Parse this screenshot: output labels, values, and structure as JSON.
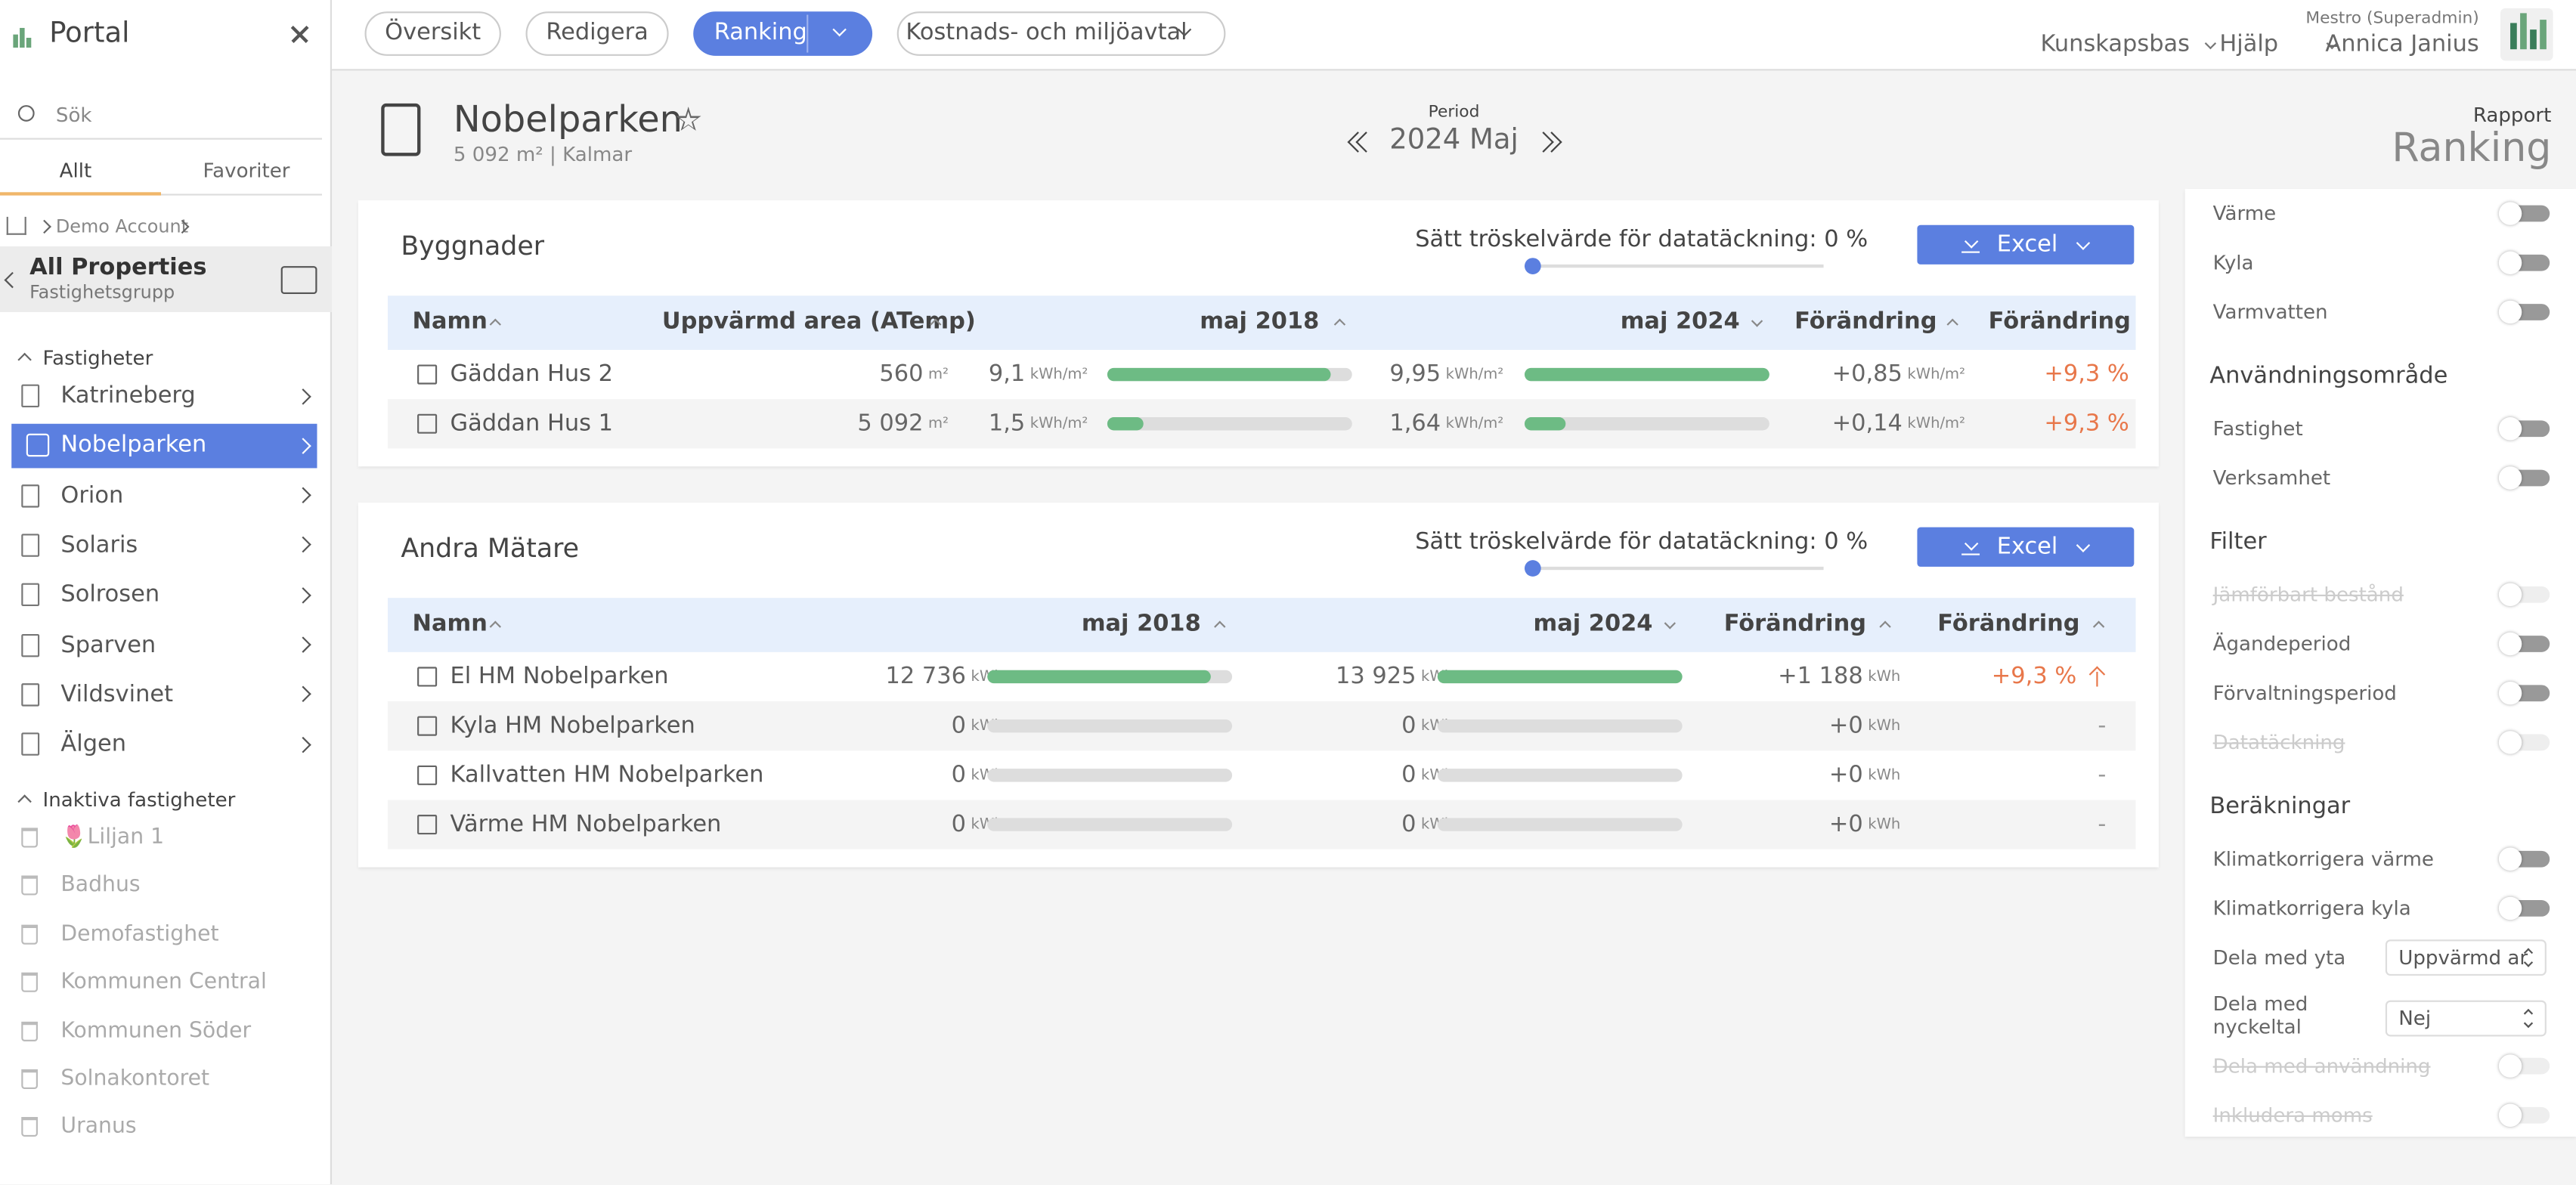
{
  "sidebar": {
    "title": "Portal",
    "search_placeholder": "Sök",
    "tabs": [
      "Allt",
      "Favoriter"
    ],
    "breadcrumb": "Demo Account",
    "group_name": "All Properties",
    "group_type": "Fastighetsgrupp",
    "properties_heading": "Fastigheter",
    "properties": [
      "Katrineberg",
      "Nobelparken",
      "Orion",
      "Solaris",
      "Solrosen",
      "Sparven",
      "Vildsvinet",
      "Älgen"
    ],
    "inactive_heading": "Inaktiva fastigheter",
    "inactive_properties": [
      "🌷Liljan 1",
      "Badhus",
      "Demofastighet",
      "Kommunen Central",
      "Kommunen Söder",
      "Solnakontoret",
      "Uranus"
    ]
  },
  "topbar": {
    "tabs": [
      "Översikt",
      "Redigera",
      "Ranking",
      "Kostnads- och miljöavtal"
    ],
    "links": [
      "Kunskapsbas",
      "Hjälp"
    ],
    "user_role": "Mestro (Superadmin)",
    "user_name": "Annica Janius"
  },
  "header": {
    "name": "Nobelparken",
    "subtitle": "5 092 m² | Kalmar",
    "period_label": "Period",
    "period": "2024 Maj",
    "report_label": "Rapport",
    "report": "Ranking"
  },
  "buildings": {
    "title": "Byggnader",
    "threshold": "Sätt tröskelvärde för datatäckning: 0 %",
    "export": "Excel",
    "columns": [
      "Namn",
      "Uppvärmd area (ATemp)",
      "maj 2018",
      "maj 2024",
      "Förändring",
      "Förändring"
    ],
    "rows": [
      {
        "name": "Gäddan Hus 2",
        "area": "560",
        "area_unit": "m²",
        "v2018": "9,1",
        "v2018_unit": "kWh/m²",
        "v2024": "9,95",
        "v2024_unit": "kWh/m²",
        "change": "+0,85",
        "change_unit": "kWh/m²",
        "change_pct": "+9,3 %"
      },
      {
        "name": "Gäddan Hus 1",
        "area": "5 092",
        "area_unit": "m²",
        "v2018": "1,5",
        "v2018_unit": "kWh/m²",
        "v2024": "1,64",
        "v2024_unit": "kWh/m²",
        "change": "+0,14",
        "change_unit": "kWh/m²",
        "change_pct": "+9,3 %"
      }
    ]
  },
  "meters": {
    "title": "Andra Mätare",
    "threshold": "Sätt tröskelvärde för datatäckning: 0 %",
    "export": "Excel",
    "columns": [
      "Namn",
      "maj 2018",
      "maj 2024",
      "Förändring",
      "Förändring"
    ],
    "rows": [
      {
        "name": "El HM Nobelparken",
        "v2018": "12 736",
        "v2018_unit": "kWh",
        "v2024": "13 925",
        "v2024_unit": "kWh",
        "change": "+1 188",
        "change_unit": "kWh",
        "change_pct": "+9,3 %",
        "trend": "up"
      },
      {
        "name": "Kyla HM Nobelparken",
        "v2018": "0",
        "v2018_unit": "kWh",
        "v2024": "0",
        "v2024_unit": "kWh",
        "change": "+0",
        "change_unit": "kWh",
        "change_pct": "-"
      },
      {
        "name": "Kallvatten HM Nobelparken",
        "v2018": "0",
        "v2018_unit": "kWh",
        "v2024": "0",
        "v2024_unit": "kWh",
        "change": "+0",
        "change_unit": "kWh",
        "change_pct": "-"
      },
      {
        "name": "Värme HM Nobelparken",
        "v2018": "0",
        "v2018_unit": "kWh",
        "v2024": "0",
        "v2024_unit": "kWh",
        "change": "+0",
        "change_unit": "kWh",
        "change_pct": "-"
      }
    ]
  },
  "settings": {
    "groups": [
      {
        "items": [
          {
            "label": "Värme"
          },
          {
            "label": "Kyla"
          },
          {
            "label": "Varmvatten"
          }
        ]
      },
      {
        "heading": "Användningsområde",
        "items": [
          {
            "label": "Fastighet"
          },
          {
            "label": "Verksamhet"
          }
        ]
      },
      {
        "heading": "Filter",
        "items": [
          {
            "label": "Jämförbart bestånd",
            "disabled": true
          },
          {
            "label": "Ägandeperiod"
          },
          {
            "label": "Förvaltningsperiod"
          },
          {
            "label": "Datatäckning",
            "disabled": true
          }
        ]
      },
      {
        "heading": "Beräkningar",
        "items": [
          {
            "label": "Klimatkorrigera värme"
          },
          {
            "label": "Klimatkorrigera kyla"
          },
          {
            "label": "Dela med yta",
            "select": "Uppvärmd ar"
          },
          {
            "label": "Dela med nyckeltal",
            "select": "Nej"
          },
          {
            "label": "Dela med användning",
            "disabled": true
          },
          {
            "label": "Inkludera moms",
            "disabled": true
          }
        ]
      }
    ]
  }
}
